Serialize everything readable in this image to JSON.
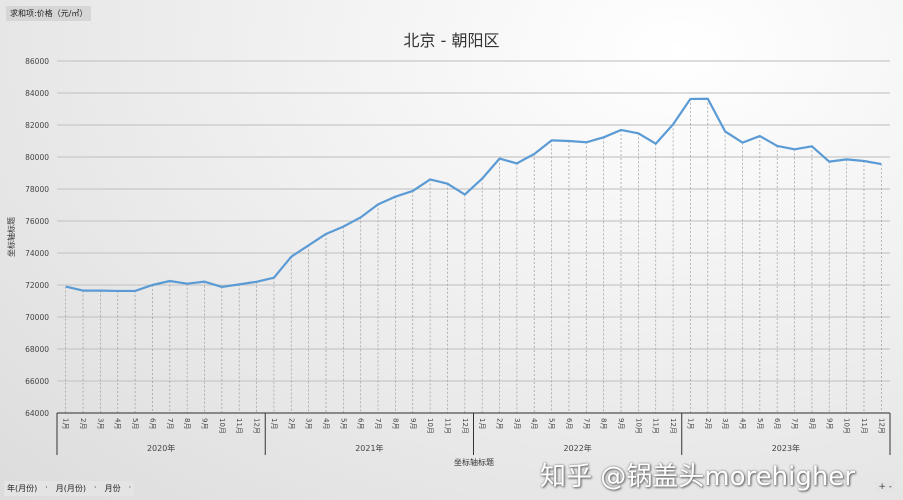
{
  "pivot_value_field": "求和项:价格（元/㎡）",
  "bottom_fields": [
    "年(月份)",
    "月(月份)",
    "月份"
  ],
  "zoom_controls": [
    "+",
    "-"
  ],
  "watermark": "知乎 @锅盖头morehigher",
  "colors": {
    "line": "#5b9bd5",
    "grid": "#c8c8c8",
    "drop_line": "#9a9a9a"
  },
  "chart_data": {
    "type": "line",
    "title": "北京 - 朝阳区",
    "xlabel": "坐标轴标题",
    "ylabel": "坐标轴标题",
    "ylim": [
      64000,
      86000
    ],
    "yticks": [
      64000,
      66000,
      68000,
      70000,
      72000,
      74000,
      76000,
      78000,
      80000,
      82000,
      84000,
      86000
    ],
    "grid": true,
    "drop_lines": true,
    "years": [
      "2020年",
      "2021年",
      "2022年",
      "2023年"
    ],
    "months": [
      "1月",
      "2月",
      "3月",
      "4月",
      "5月",
      "6月",
      "7月",
      "8月",
      "9月",
      "10月",
      "11月",
      "12月"
    ],
    "series": [
      {
        "values": [
          71900,
          71650,
          71650,
          71630,
          71630,
          72000,
          72250,
          72080,
          72210,
          71880,
          72040,
          72200,
          72460,
          73770,
          74480,
          75190,
          75650,
          76230,
          77040,
          77520,
          77880,
          78600,
          78330,
          77650,
          78650,
          79900,
          79600,
          80190,
          81040,
          81000,
          80920,
          81230,
          81690,
          81480,
          80830,
          82040,
          83630,
          83640,
          81600,
          80900,
          81310,
          80690,
          80480,
          80670,
          79710,
          79850,
          79750,
          79560
        ]
      }
    ]
  }
}
